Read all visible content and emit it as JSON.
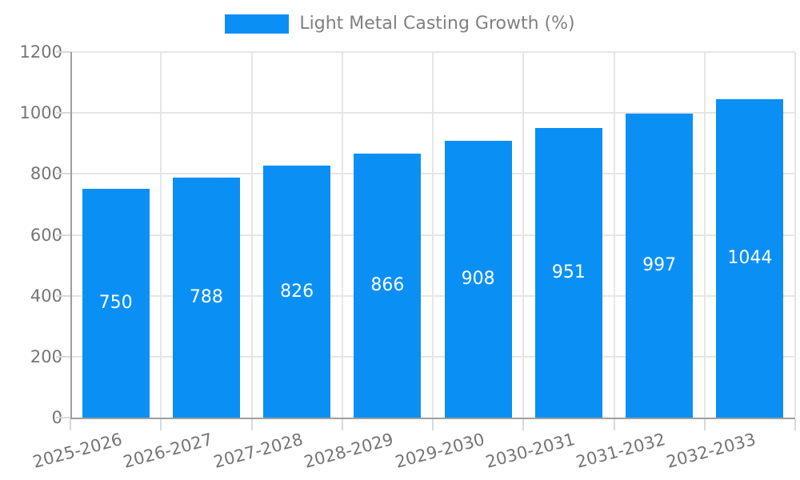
{
  "chart_data": {
    "type": "bar",
    "legend_label": "Light Metal Casting Growth (%)",
    "legend_position": "top",
    "categories": [
      "2025-2026",
      "2026-2027",
      "2027-2028",
      "2028-2029",
      "2029-2030",
      "2030-2031",
      "2031-2032",
      "2032-2033"
    ],
    "values": [
      750,
      788,
      826,
      866,
      908,
      951,
      997,
      1044
    ],
    "title": "",
    "xlabel": "",
    "ylabel": "",
    "ylim": [
      0,
      1200
    ],
    "ytick_step": 200,
    "yticks": [
      0,
      200,
      400,
      600,
      800,
      1000,
      1200
    ],
    "grid": true,
    "value_labels_inside_bars": true,
    "x_label_rotation_deg": -15,
    "colors": {
      "bar": "#0a90f5",
      "value_label": "#ffffff",
      "axis_line": "#9e9e9e",
      "grid_line": "#e6e6e6",
      "tick_line": "#d9d9d9",
      "axis_text": "#757575",
      "legend_text": "#808080",
      "background": "#ffffff"
    }
  }
}
